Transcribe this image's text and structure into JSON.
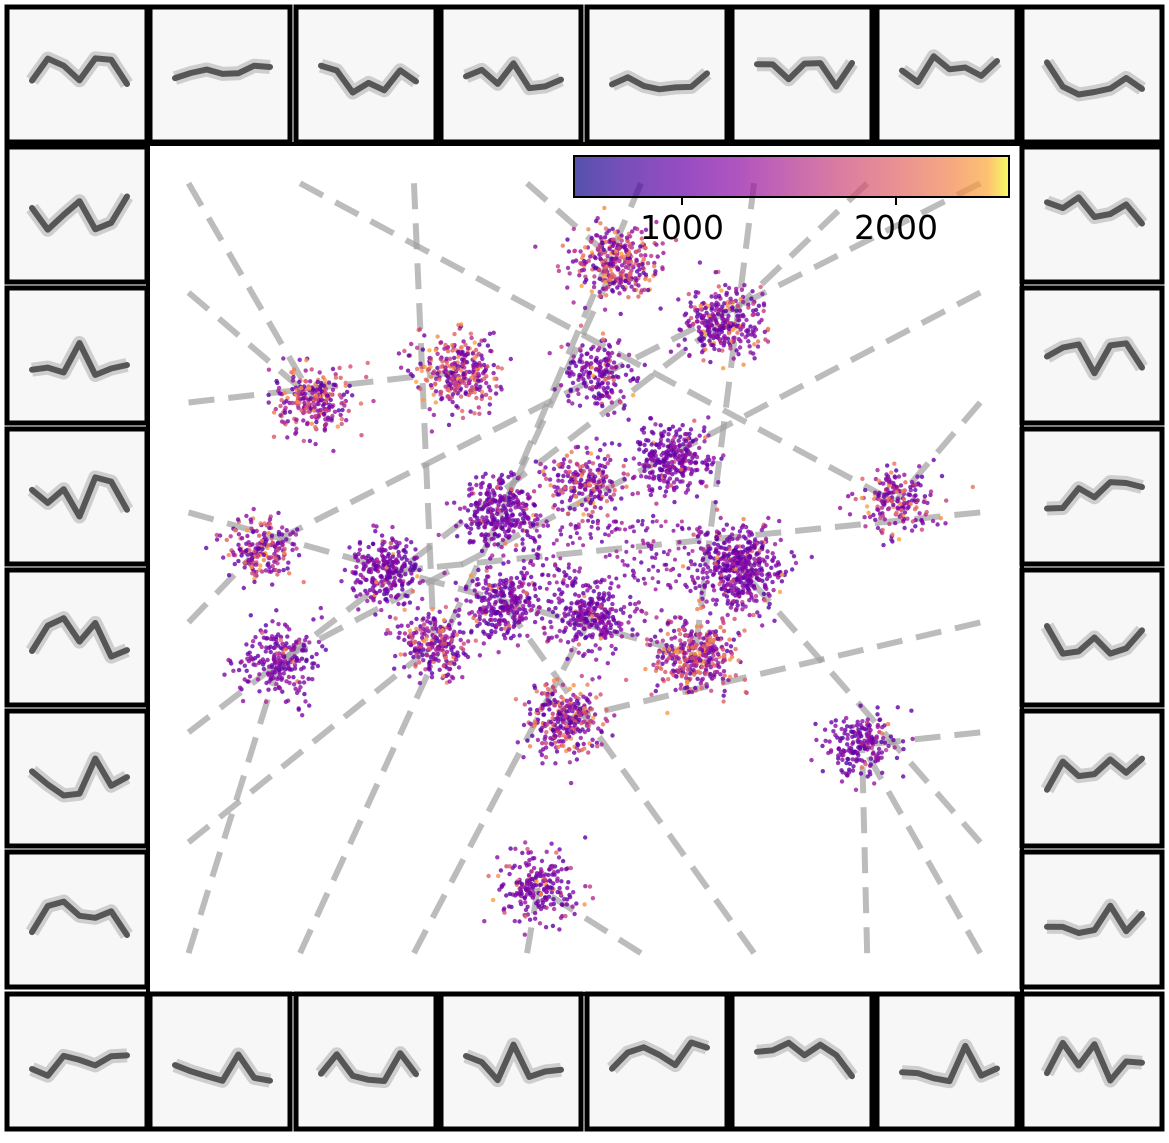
{
  "chart_data": {
    "type": "scatter",
    "title": "",
    "xlabel": "",
    "ylabel": "",
    "grid": false,
    "colorbar": {
      "colormap": "plasma",
      "range": [
        500,
        2500
      ],
      "ticks": [
        1000,
        2000
      ],
      "tick_labels": [
        "1000",
        "2000"
      ],
      "placement": "top-right"
    },
    "clusters": [
      {
        "id": "c01",
        "center": [
          616,
          262
        ],
        "count": 340,
        "color_mix": 0.55
      },
      {
        "id": "c02",
        "center": [
          722,
          322
        ],
        "count": 300,
        "color_mix": 0.2
      },
      {
        "id": "c03",
        "center": [
          457,
          372
        ],
        "count": 320,
        "color_mix": 0.55
      },
      {
        "id": "c04",
        "center": [
          314,
          400
        ],
        "count": 260,
        "color_mix": 0.45
      },
      {
        "id": "c05",
        "center": [
          600,
          375
        ],
        "count": 190,
        "color_mix": 0.1
      },
      {
        "id": "c06",
        "center": [
          673,
          460
        ],
        "count": 300,
        "color_mix": 0.05
      },
      {
        "id": "c07",
        "center": [
          583,
          483
        ],
        "count": 220,
        "color_mix": 0.35
      },
      {
        "id": "c08",
        "center": [
          895,
          502
        ],
        "count": 200,
        "color_mix": 0.4
      },
      {
        "id": "c09",
        "center": [
          500,
          515
        ],
        "count": 300,
        "color_mix": 0.05
      },
      {
        "id": "c10",
        "center": [
          259,
          549
        ],
        "count": 200,
        "color_mix": 0.35
      },
      {
        "id": "c11",
        "center": [
          385,
          572
        ],
        "count": 260,
        "color_mix": 0.05
      },
      {
        "id": "c12",
        "center": [
          740,
          568
        ],
        "count": 460,
        "color_mix": 0.1
      },
      {
        "id": "c13",
        "center": [
          505,
          605
        ],
        "count": 280,
        "color_mix": 0.05
      },
      {
        "id": "c14",
        "center": [
          592,
          615
        ],
        "count": 280,
        "color_mix": 0.05
      },
      {
        "id": "c15",
        "center": [
          434,
          645
        ],
        "count": 240,
        "color_mix": 0.4
      },
      {
        "id": "c16",
        "center": [
          695,
          655
        ],
        "count": 380,
        "color_mix": 0.55
      },
      {
        "id": "c17",
        "center": [
          280,
          660
        ],
        "count": 220,
        "color_mix": 0.05
      },
      {
        "id": "c18",
        "center": [
          564,
          720
        ],
        "count": 300,
        "color_mix": 0.45
      },
      {
        "id": "c19",
        "center": [
          862,
          745
        ],
        "count": 200,
        "color_mix": 0.05
      },
      {
        "id": "c20",
        "center": [
          538,
          888
        ],
        "count": 220,
        "color_mix": 0.12
      }
    ],
    "spectrogram_thumbnails": 28
  }
}
